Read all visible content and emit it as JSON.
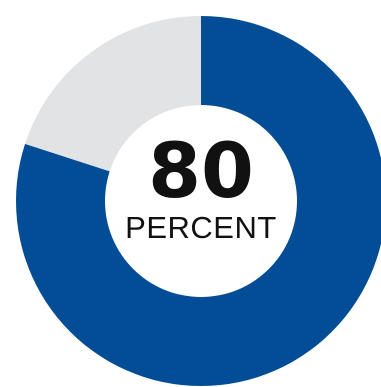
{
  "chart_data": {
    "type": "pie",
    "slices": [
      {
        "value": 80,
        "color": "#024d96"
      },
      {
        "value": 20,
        "color": "#e2e3e5"
      }
    ],
    "center_value": "80",
    "center_label": "PERCENT"
  }
}
